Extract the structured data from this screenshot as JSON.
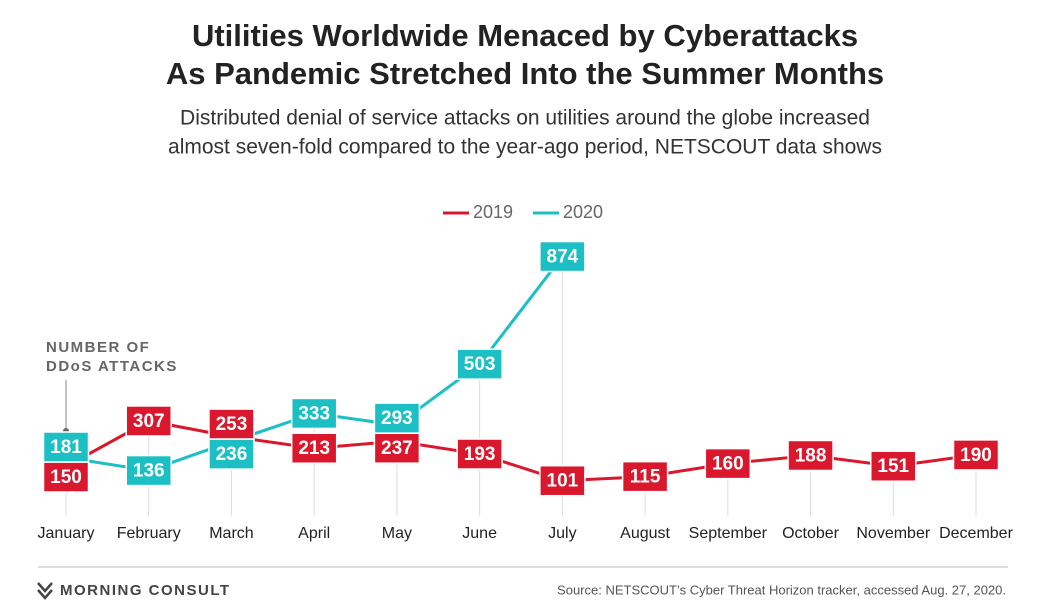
{
  "chart_data": {
    "type": "line",
    "title": [
      "Utilities Worldwide Menaced by Cyberattacks",
      "As Pandemic Stretched Into the Summer Months"
    ],
    "subtitle": [
      "Distributed denial of service attacks on utilities around the globe increased",
      "almost seven-fold compared to the year-ago period, NETSCOUT data shows"
    ],
    "y_label": [
      "NUMBER OF",
      "DDoS ATTACKS"
    ],
    "categories": [
      "January",
      "February",
      "March",
      "April",
      "May",
      "June",
      "July",
      "August",
      "September",
      "October",
      "November",
      "December"
    ],
    "series": [
      {
        "name": "2019",
        "color": "#d9182d",
        "values": [
          150,
          307,
          253,
          213,
          237,
          193,
          101,
          115,
          160,
          188,
          151,
          190
        ]
      },
      {
        "name": "2020",
        "color": "#1cbfc4",
        "values": [
          181,
          136,
          236,
          333,
          293,
          503,
          874,
          null,
          null,
          null,
          null,
          null
        ]
      }
    ],
    "ylim": [
      0,
      900
    ],
    "legend": "top",
    "brand": "MORNING CONSULT",
    "source": "Source: NETSCOUT’s Cyber Threat Horizon tracker, accessed Aug. 27, 2020."
  }
}
